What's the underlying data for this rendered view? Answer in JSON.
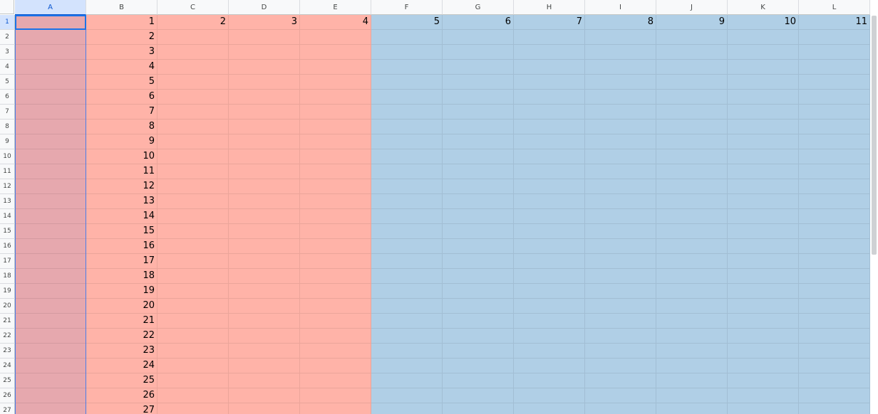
{
  "columns": [
    "A",
    "B",
    "C",
    "D",
    "E",
    "F",
    "G",
    "H",
    "I",
    "J",
    "K",
    "L"
  ],
  "rows": [
    "1",
    "2",
    "3",
    "4",
    "5",
    "6",
    "7",
    "8",
    "9",
    "10",
    "11",
    "12",
    "13",
    "14",
    "15",
    "16",
    "17",
    "18",
    "19",
    "20",
    "21",
    "22",
    "23",
    "24",
    "25",
    "26",
    "27"
  ],
  "selected": {
    "column": "A",
    "row": "1"
  },
  "colors": {
    "column_a_fill": "#e6a8ae",
    "red_fill": "#ffb3a8",
    "blue_fill": "#b0cfe6",
    "selection_border": "#1a73e8",
    "header_selected_fill": "#d3e3fd"
  },
  "fill_ranges": [
    {
      "columns": "A",
      "color": "column_a_fill"
    },
    {
      "columns": "B:E",
      "color": "red_fill"
    },
    {
      "columns": "F:L",
      "color": "blue_fill"
    }
  ],
  "cells": {
    "B1": "1",
    "C1": "2",
    "D1": "3",
    "E1": "4",
    "F1": "5",
    "G1": "6",
    "H1": "7",
    "I1": "8",
    "J1": "9",
    "K1": "10",
    "L1": "11",
    "B2": "2",
    "B3": "3",
    "B4": "4",
    "B5": "5",
    "B6": "6",
    "B7": "7",
    "B8": "8",
    "B9": "9",
    "B10": "10",
    "B11": "11",
    "B12": "12",
    "B13": "13",
    "B14": "14",
    "B15": "15",
    "B16": "16",
    "B17": "17",
    "B18": "18",
    "B19": "19",
    "B20": "20",
    "B21": "21",
    "B22": "22",
    "B23": "23",
    "B24": "24",
    "B25": "25",
    "B26": "26",
    "B27": "27"
  }
}
